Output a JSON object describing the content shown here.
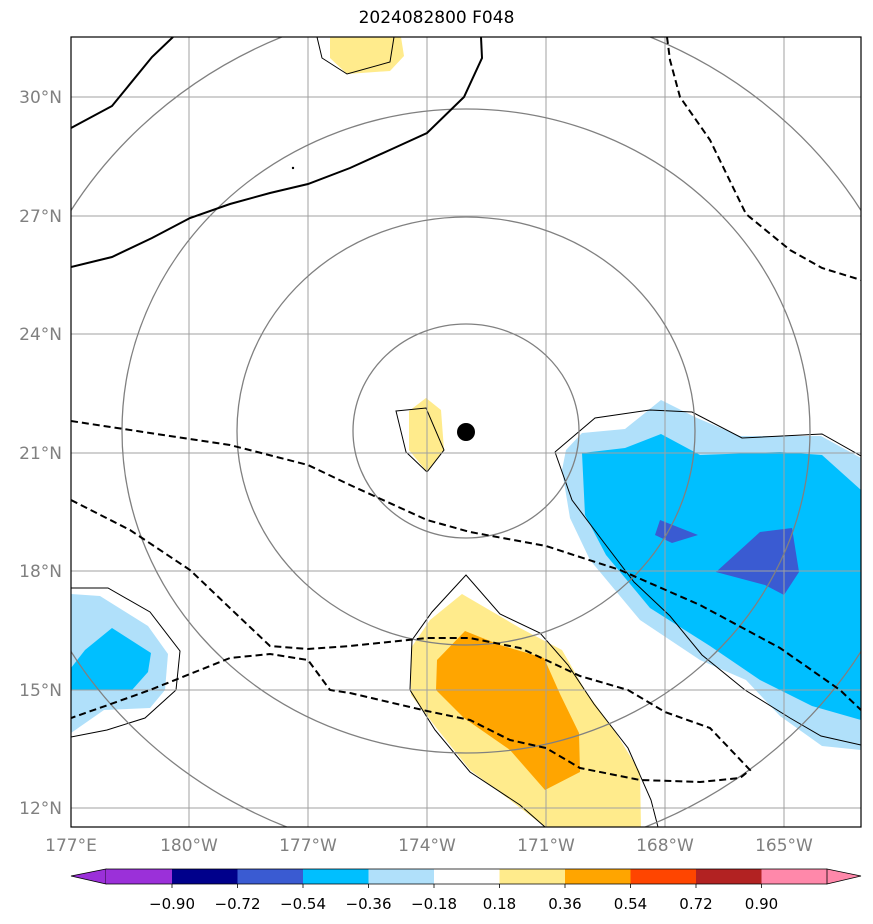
{
  "title": "2024082800 F048",
  "map": {
    "lat_labels": [
      "30°N",
      "27°N",
      "24°N",
      "21°N",
      "18°N",
      "15°N",
      "12°N"
    ],
    "lon_labels": [
      "177°E",
      "180°W",
      "177°W",
      "174°W",
      "171°W",
      "168°W",
      "165°W"
    ],
    "storm_center": "21.5°N 172.9°W"
  },
  "colorbar": {
    "levels": [
      "−0.90",
      "−0.72",
      "−0.54",
      "−0.36",
      "−0.18",
      "0.18",
      "0.36",
      "0.54",
      "0.72",
      "0.90"
    ],
    "colors": [
      "#9b30d9",
      "#00008b",
      "#3a5bd2",
      "#00bfff",
      "#b0e0fa",
      "#ffffff",
      "#ffeb8c",
      "#ffa500",
      "#ff4500",
      "#b22222",
      "#ff88aa"
    ]
  },
  "palette": {
    "light_blue": "#b0e0fa",
    "blue": "#00bfff",
    "royal_blue": "#3a5bd2",
    "light_yellow": "#ffeb8c",
    "orange": "#ffa500",
    "grid": "#a0a0a0",
    "ring": "#808080"
  }
}
